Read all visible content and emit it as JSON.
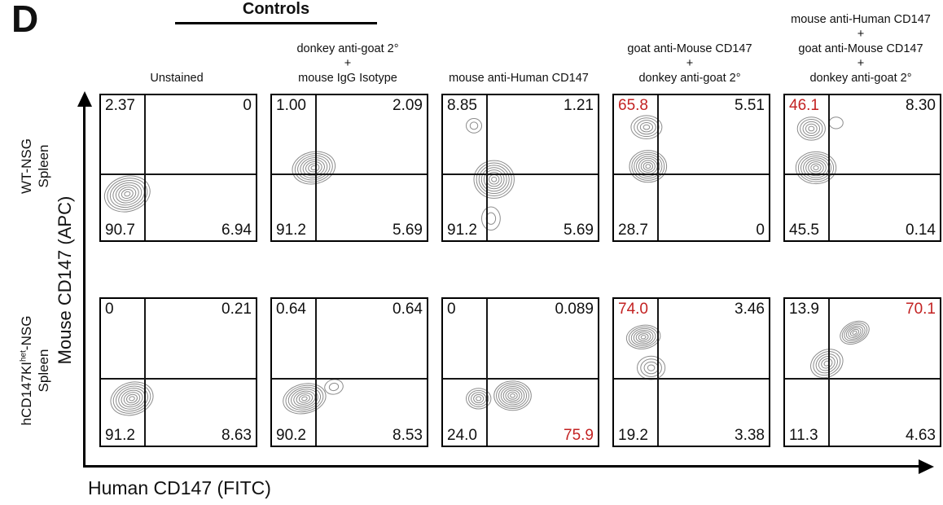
{
  "panel_label": "D",
  "controls_label": "Controls",
  "column_titles": [
    [
      "Unstained"
    ],
    [
      "donkey anti-goat 2°",
      "+",
      "mouse IgG Isotype"
    ],
    [
      "mouse anti-Human CD147"
    ],
    [
      "goat anti-Mouse CD147",
      "+",
      "donkey anti-goat 2°"
    ],
    [
      "mouse anti-Human CD147",
      "+",
      "goat anti-Mouse CD147",
      "+",
      "donkey anti-goat 2°"
    ]
  ],
  "row_labels": [
    {
      "line1": "WT-NSG",
      "line2": "Spleen"
    },
    {
      "line1_pre": "hCD147KI",
      "line1_sup": "het",
      "line1_post": "-NSG",
      "line2": "Spleen"
    }
  ],
  "axes": {
    "y": "Mouse CD147 (APC)",
    "x": "Human CD147 (FITC)"
  },
  "colors": {
    "highlight": "#c32222",
    "text": "#111111",
    "contour": "#8c8c8c"
  },
  "chart_data": {
    "type": "contour (flow cytometry quadrant plots)",
    "x_axis": "Human CD147 (FITC)",
    "y_axis": "Mouse CD147 (APC)",
    "quadrant_order": "ul / ur / ll / lr = percent of cells per quadrant",
    "plots": [
      {
        "row": "WT-NSG Spleen",
        "condition": "Unstained",
        "q": {
          "ul": "2.37",
          "ur": "0",
          "ll": "90.7",
          "lr": "6.94"
        },
        "red": {
          "ul": false,
          "ur": false,
          "ll": false,
          "lr": false
        },
        "clusters": [
          {
            "cx": 0.17,
            "cy": 0.68,
            "rx": 0.15,
            "ry": 0.12,
            "rot": -20,
            "n": 8
          }
        ]
      },
      {
        "row": "WT-NSG Spleen",
        "condition": "donkey anti-goat 2° + mouse IgG Isotype",
        "q": {
          "ul": "1.00",
          "ur": "2.09",
          "ll": "91.2",
          "lr": "5.69"
        },
        "red": {
          "ul": false,
          "ur": false,
          "ll": false,
          "lr": false
        },
        "clusters": [
          {
            "cx": 0.27,
            "cy": 0.5,
            "rx": 0.14,
            "ry": 0.11,
            "rot": -15,
            "n": 8
          }
        ]
      },
      {
        "row": "WT-NSG Spleen",
        "condition": "mouse anti-Human CD147",
        "q": {
          "ul": "8.85",
          "ur": "1.21",
          "ll": "91.2",
          "lr": "5.69"
        },
        "red": {
          "ul": false,
          "ur": false,
          "ll": false,
          "lr": false
        },
        "clusters": [
          {
            "cx": 0.33,
            "cy": 0.58,
            "rx": 0.13,
            "ry": 0.13,
            "rot": 0,
            "n": 8
          },
          {
            "cx": 0.2,
            "cy": 0.21,
            "rx": 0.05,
            "ry": 0.05,
            "rot": 0,
            "n": 2
          },
          {
            "cx": 0.31,
            "cy": 0.85,
            "rx": 0.06,
            "ry": 0.08,
            "rot": 0,
            "n": 2
          }
        ]
      },
      {
        "row": "WT-NSG Spleen",
        "condition": "goat anti-Mouse CD147 + donkey anti-goat 2°",
        "q": {
          "ul": "65.8",
          "ur": "5.51",
          "ll": "28.7",
          "lr": "0"
        },
        "red": {
          "ul": true,
          "ur": false,
          "ll": false,
          "lr": false
        },
        "clusters": [
          {
            "cx": 0.21,
            "cy": 0.22,
            "rx": 0.1,
            "ry": 0.08,
            "rot": 0,
            "n": 5
          },
          {
            "cx": 0.22,
            "cy": 0.49,
            "rx": 0.12,
            "ry": 0.11,
            "rot": 0,
            "n": 8
          }
        ]
      },
      {
        "row": "WT-NSG Spleen",
        "condition": "mouse anti-Human CD147 + goat anti-Mouse CD147 + donkey anti-goat 2°",
        "q": {
          "ul": "46.1",
          "ur": "8.30",
          "ll": "45.5",
          "lr": "0.14"
        },
        "red": {
          "ul": true,
          "ur": false,
          "ll": false,
          "lr": false
        },
        "clusters": [
          {
            "cx": 0.17,
            "cy": 0.23,
            "rx": 0.09,
            "ry": 0.08,
            "rot": 0,
            "n": 5
          },
          {
            "cx": 0.33,
            "cy": 0.19,
            "rx": 0.045,
            "ry": 0.04,
            "rot": 0,
            "n": 1
          },
          {
            "cx": 0.2,
            "cy": 0.5,
            "rx": 0.13,
            "ry": 0.11,
            "rot": 0,
            "n": 8
          }
        ]
      },
      {
        "row": "hCD147KI(het)-NSG Spleen",
        "condition": "Unstained",
        "q": {
          "ul": "0",
          "ur": "0.21",
          "ll": "91.2",
          "lr": "8.63"
        },
        "red": {
          "ul": false,
          "ur": false,
          "ll": false,
          "lr": false
        },
        "clusters": [
          {
            "cx": 0.2,
            "cy": 0.68,
            "rx": 0.14,
            "ry": 0.11,
            "rot": -20,
            "n": 8
          }
        ]
      },
      {
        "row": "hCD147KI(het)-NSG Spleen",
        "condition": "donkey anti-goat 2° + mouse IgG Isotype",
        "q": {
          "ul": "0.64",
          "ur": "0.64",
          "ll": "90.2",
          "lr": "8.53"
        },
        "red": {
          "ul": false,
          "ur": false,
          "ll": false,
          "lr": false
        },
        "clusters": [
          {
            "cx": 0.21,
            "cy": 0.68,
            "rx": 0.14,
            "ry": 0.1,
            "rot": -15,
            "n": 8
          },
          {
            "cx": 0.4,
            "cy": 0.6,
            "rx": 0.06,
            "ry": 0.05,
            "rot": -15,
            "n": 2
          }
        ]
      },
      {
        "row": "hCD147KI(het)-NSG Spleen",
        "condition": "mouse anti-Human CD147",
        "q": {
          "ul": "0",
          "ur": "0.089",
          "ll": "24.0",
          "lr": "75.9"
        },
        "red": {
          "ul": false,
          "ur": false,
          "ll": false,
          "lr": true
        },
        "clusters": [
          {
            "cx": 0.23,
            "cy": 0.68,
            "rx": 0.08,
            "ry": 0.07,
            "rot": 0,
            "n": 5
          },
          {
            "cx": 0.45,
            "cy": 0.66,
            "rx": 0.12,
            "ry": 0.1,
            "rot": 0,
            "n": 8
          }
        ]
      },
      {
        "row": "hCD147KI(het)-NSG Spleen",
        "condition": "goat anti-Mouse CD147 + donkey anti-goat 2°",
        "q": {
          "ul": "74.0",
          "ur": "3.46",
          "ll": "19.2",
          "lr": "3.38"
        },
        "red": {
          "ul": true,
          "ur": false,
          "ll": false,
          "lr": false
        },
        "clusters": [
          {
            "cx": 0.19,
            "cy": 0.26,
            "rx": 0.11,
            "ry": 0.08,
            "rot": -10,
            "n": 7
          },
          {
            "cx": 0.24,
            "cy": 0.47,
            "rx": 0.09,
            "ry": 0.08,
            "rot": 0,
            "n": 4
          }
        ]
      },
      {
        "row": "hCD147KI(het)-NSG Spleen",
        "condition": "mouse anti-Human CD147 + goat anti-Mouse CD147 + donkey anti-goat 2°",
        "q": {
          "ul": "13.9",
          "ur": "70.1",
          "ll": "11.3",
          "lr": "4.63"
        },
        "red": {
          "ul": false,
          "ur": true,
          "ll": false,
          "lr": false
        },
        "clusters": [
          {
            "cx": 0.45,
            "cy": 0.23,
            "rx": 0.1,
            "ry": 0.07,
            "rot": -30,
            "n": 7
          },
          {
            "cx": 0.27,
            "cy": 0.44,
            "rx": 0.11,
            "ry": 0.09,
            "rot": -35,
            "n": 6
          }
        ]
      }
    ]
  }
}
